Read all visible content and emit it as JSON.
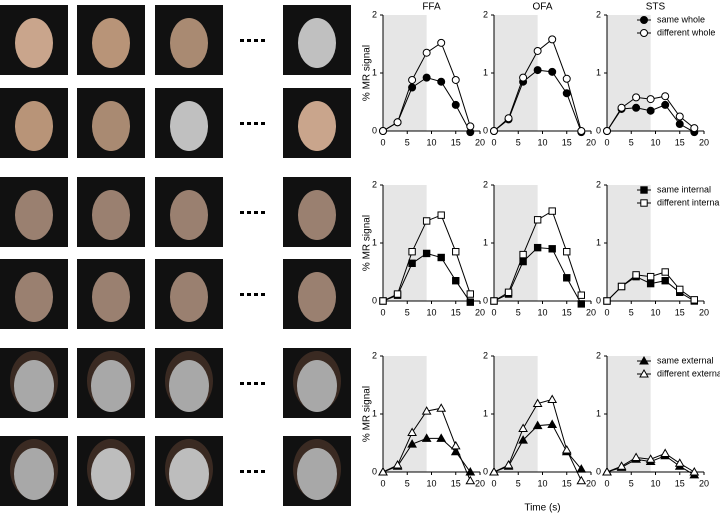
{
  "chart_data": [
    {
      "type": "line",
      "title": "FFA",
      "ylabel": "% MR signal",
      "xlim": [
        0,
        20
      ],
      "xticks": [
        0,
        5,
        10,
        15,
        20
      ],
      "ylim": [
        0,
        2
      ],
      "yticks": [
        0,
        1,
        2
      ],
      "shade": [
        0,
        9
      ],
      "x": [
        0,
        3,
        6,
        9,
        12,
        15,
        18
      ],
      "series": [
        {
          "color": "#000000",
          "marker": "circle",
          "fill": "#000000",
          "values": [
            0,
            0.15,
            0.75,
            0.92,
            0.85,
            0.45,
            -0.02
          ]
        },
        {
          "color": "#000000",
          "marker": "circle",
          "fill": "#ffffff",
          "values": [
            0,
            0.15,
            0.88,
            1.35,
            1.52,
            0.88,
            0.08
          ]
        }
      ]
    },
    {
      "type": "line",
      "title": "OFA",
      "xlim": [
        0,
        20
      ],
      "xticks": [
        0,
        5,
        10,
        15,
        20
      ],
      "ylim": [
        0,
        2
      ],
      "yticks": [
        0,
        1,
        2
      ],
      "shade": [
        0,
        9
      ],
      "x": [
        0,
        3,
        6,
        9,
        12,
        15,
        18
      ],
      "series": [
        {
          "color": "#000000",
          "marker": "circle",
          "fill": "#000000",
          "values": [
            0,
            0.2,
            0.85,
            1.05,
            1.02,
            0.65,
            -0.02
          ]
        },
        {
          "color": "#000000",
          "marker": "circle",
          "fill": "#ffffff",
          "values": [
            0,
            0.22,
            0.92,
            1.38,
            1.58,
            0.9,
            0
          ]
        }
      ]
    },
    {
      "type": "line",
      "title": "STS",
      "legend": "upper right",
      "xlim": [
        0,
        20
      ],
      "xticks": [
        0,
        5,
        10,
        15,
        20
      ],
      "ylim": [
        0,
        2
      ],
      "yticks": [
        0,
        1,
        2
      ],
      "shade": [
        0,
        9
      ],
      "x": [
        0,
        3,
        6,
        9,
        12,
        15,
        18
      ],
      "series": [
        {
          "name": "same whole",
          "color": "#000000",
          "marker": "circle",
          "fill": "#000000",
          "values": [
            0,
            0.38,
            0.4,
            0.35,
            0.45,
            0.12,
            -0.02
          ]
        },
        {
          "name": "different whole",
          "color": "#000000",
          "marker": "circle",
          "fill": "#ffffff",
          "values": [
            0,
            0.4,
            0.58,
            0.55,
            0.6,
            0.25,
            0.05
          ]
        }
      ]
    },
    {
      "type": "line",
      "ylabel": "% MR signal",
      "xlim": [
        0,
        20
      ],
      "xticks": [
        0,
        5,
        10,
        15,
        20
      ],
      "ylim": [
        0,
        2
      ],
      "yticks": [
        0,
        1,
        2
      ],
      "shade": [
        0,
        9
      ],
      "x": [
        0,
        3,
        6,
        9,
        12,
        15,
        18
      ],
      "series": [
        {
          "color": "#000000",
          "marker": "square",
          "fill": "#000000",
          "values": [
            0,
            0.1,
            0.65,
            0.82,
            0.75,
            0.35,
            -0.02
          ]
        },
        {
          "color": "#000000",
          "marker": "square",
          "fill": "#ffffff",
          "values": [
            0,
            0.12,
            0.85,
            1.38,
            1.48,
            0.85,
            0.12
          ]
        }
      ]
    },
    {
      "type": "line",
      "xlim": [
        0,
        20
      ],
      "xticks": [
        0,
        5,
        10,
        15,
        20
      ],
      "ylim": [
        0,
        2
      ],
      "yticks": [
        0,
        1,
        2
      ],
      "shade": [
        0,
        9
      ],
      "x": [
        0,
        3,
        6,
        9,
        12,
        15,
        18
      ],
      "series": [
        {
          "color": "#000000",
          "marker": "square",
          "fill": "#000000",
          "values": [
            0,
            0.12,
            0.68,
            0.92,
            0.9,
            0.4,
            -0.05
          ]
        },
        {
          "color": "#000000",
          "marker": "square",
          "fill": "#ffffff",
          "values": [
            0,
            0.15,
            0.8,
            1.4,
            1.55,
            0.85,
            0.1
          ]
        }
      ]
    },
    {
      "type": "line",
      "legend": "upper right",
      "xlim": [
        0,
        20
      ],
      "xticks": [
        0,
        5,
        10,
        15,
        20
      ],
      "ylim": [
        0,
        2
      ],
      "yticks": [
        0,
        1,
        2
      ],
      "shade": [
        0,
        9
      ],
      "x": [
        0,
        3,
        6,
        9,
        12,
        15,
        18
      ],
      "series": [
        {
          "name": "same internal",
          "color": "#000000",
          "marker": "square",
          "fill": "#000000",
          "values": [
            0,
            0.25,
            0.42,
            0.3,
            0.35,
            0.15,
            0
          ]
        },
        {
          "name": "different internal",
          "color": "#000000",
          "marker": "square",
          "fill": "#ffffff",
          "values": [
            0,
            0.25,
            0.45,
            0.42,
            0.5,
            0.2,
            0.02
          ]
        }
      ]
    },
    {
      "type": "line",
      "ylabel": "% MR signal",
      "xlim": [
        0,
        20
      ],
      "xticks": [
        0,
        5,
        10,
        15,
        20
      ],
      "ylim": [
        0,
        2
      ],
      "yticks": [
        0,
        1,
        2
      ],
      "shade": [
        0,
        9
      ],
      "x": [
        0,
        3,
        6,
        9,
        12,
        15,
        18
      ],
      "series": [
        {
          "color": "#000000",
          "marker": "triangle",
          "fill": "#000000",
          "values": [
            0,
            0.1,
            0.48,
            0.58,
            0.58,
            0.35,
            0
          ]
        },
        {
          "color": "#000000",
          "marker": "triangle",
          "fill": "#ffffff",
          "values": [
            0,
            0.12,
            0.68,
            1.05,
            1.1,
            0.45,
            -0.15
          ]
        }
      ]
    },
    {
      "type": "line",
      "xlabel": "Time (s)",
      "xlim": [
        0,
        20
      ],
      "xticks": [
        0,
        5,
        10,
        15,
        20
      ],
      "ylim": [
        0,
        2
      ],
      "yticks": [
        0,
        1,
        2
      ],
      "shade": [
        0,
        9
      ],
      "x": [
        0,
        3,
        6,
        9,
        12,
        15,
        18
      ],
      "series": [
        {
          "color": "#000000",
          "marker": "triangle",
          "fill": "#000000",
          "values": [
            0,
            0.1,
            0.55,
            0.8,
            0.82,
            0.35,
            0.05
          ]
        },
        {
          "color": "#000000",
          "marker": "triangle",
          "fill": "#ffffff",
          "values": [
            0,
            0.12,
            0.75,
            1.18,
            1.25,
            0.38,
            -0.15
          ]
        }
      ]
    },
    {
      "type": "line",
      "legend": "upper right",
      "xlim": [
        0,
        20
      ],
      "xticks": [
        0,
        5,
        10,
        15,
        20
      ],
      "ylim": [
        0,
        2
      ],
      "yticks": [
        0,
        1,
        2
      ],
      "shade": [
        0,
        9
      ],
      "x": [
        0,
        3,
        6,
        9,
        12,
        15,
        18
      ],
      "series": [
        {
          "name": "same external",
          "color": "#000000",
          "marker": "triangle",
          "fill": "#000000",
          "values": [
            0,
            0.08,
            0.22,
            0.18,
            0.28,
            0.1,
            -0.05
          ]
        },
        {
          "name": "different external",
          "color": "#000000",
          "marker": "triangle",
          "fill": "#ffffff",
          "values": [
            0,
            0.1,
            0.25,
            0.22,
            0.32,
            0.15,
            0
          ]
        }
      ]
    }
  ]
}
